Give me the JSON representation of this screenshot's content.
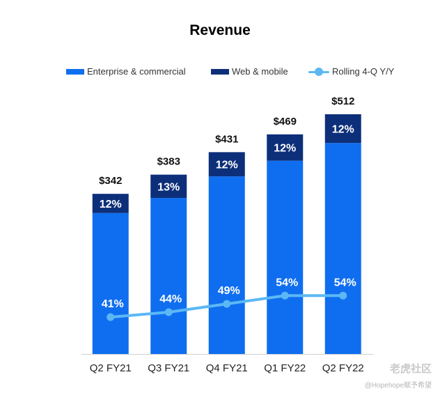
{
  "chart_data": {
    "type": "bar",
    "title": "Revenue",
    "categories": [
      "Q2 FY21",
      "Q3 FY21",
      "Q4 FY21",
      "Q1 FY22",
      "Q2 FY22"
    ],
    "totals": [
      342,
      383,
      431,
      469,
      512
    ],
    "total_labels": [
      "$342",
      "$383",
      "$431",
      "$469",
      "$512"
    ],
    "series": [
      {
        "name": "Enterprise & commercial",
        "color": "#0f6ef0",
        "share_of_total": [
          0.88,
          0.87,
          0.88,
          0.88,
          0.88
        ]
      },
      {
        "name": "Web & mobile",
        "color": "#0d2f7a",
        "share_labels": [
          "12%",
          "13%",
          "12%",
          "12%",
          "12%"
        ],
        "share_of_total": [
          0.12,
          0.13,
          0.12,
          0.12,
          0.12
        ]
      },
      {
        "name": "Rolling 4-Q Y/Y",
        "type": "line",
        "color": "#5bb8f5",
        "values": [
          41,
          44,
          49,
          54,
          54
        ],
        "labels": [
          "41%",
          "44%",
          "49%",
          "54%",
          "54%"
        ]
      }
    ],
    "stacked": true,
    "legend_position": "top",
    "grid": false
  },
  "watermark": "老虎社区",
  "credit": "@Hopehope赋予希望"
}
